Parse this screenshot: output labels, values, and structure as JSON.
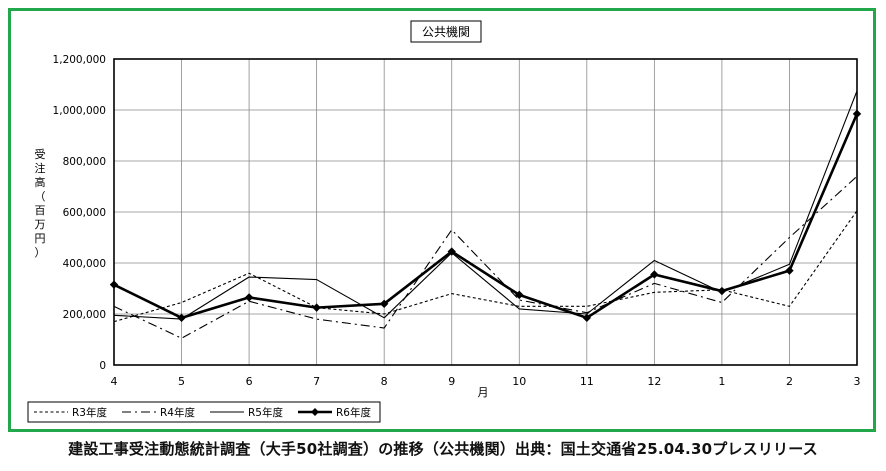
{
  "caption": "建設工事受注動態統計調査（大手50社調査）の推移（公共機関）出典：国土交通省25.04.30プレスリリース",
  "chart_data": {
    "type": "line",
    "title": "公共機関",
    "xlabel": "月",
    "ylabel": "受注高（百万円）",
    "categories": [
      "4",
      "5",
      "6",
      "7",
      "8",
      "9",
      "10",
      "11",
      "12",
      "1",
      "2",
      "3"
    ],
    "ylim": [
      0,
      1200000
    ],
    "yticks": [
      0,
      200000,
      400000,
      600000,
      800000,
      1000000,
      1200000
    ],
    "ytick_labels": [
      "0",
      "200,000",
      "400,000",
      "600,000",
      "800,000",
      "1,000,000",
      "1,200,000"
    ],
    "grid": true,
    "legend_position": "bottom-left",
    "series": [
      {
        "name": "R3年度",
        "style": "dashed",
        "color": "#000000",
        "values": [
          170000,
          245000,
          360000,
          225000,
          200000,
          280000,
          230000,
          230000,
          285000,
          295000,
          230000,
          605000
        ]
      },
      {
        "name": "R4年度",
        "style": "dashdot",
        "color": "#000000",
        "values": [
          230000,
          105000,
          250000,
          180000,
          145000,
          530000,
          255000,
          205000,
          320000,
          245000,
          500000,
          740000
        ]
      },
      {
        "name": "R5年度",
        "style": "thin",
        "color": "#000000",
        "values": [
          195000,
          180000,
          345000,
          335000,
          185000,
          440000,
          220000,
          200000,
          410000,
          285000,
          395000,
          1075000
        ]
      },
      {
        "name": "R6年度",
        "style": "bold-marker",
        "color": "#000000",
        "values": [
          315000,
          185000,
          265000,
          225000,
          240000,
          445000,
          275000,
          185000,
          355000,
          290000,
          370000,
          985000
        ]
      }
    ]
  }
}
